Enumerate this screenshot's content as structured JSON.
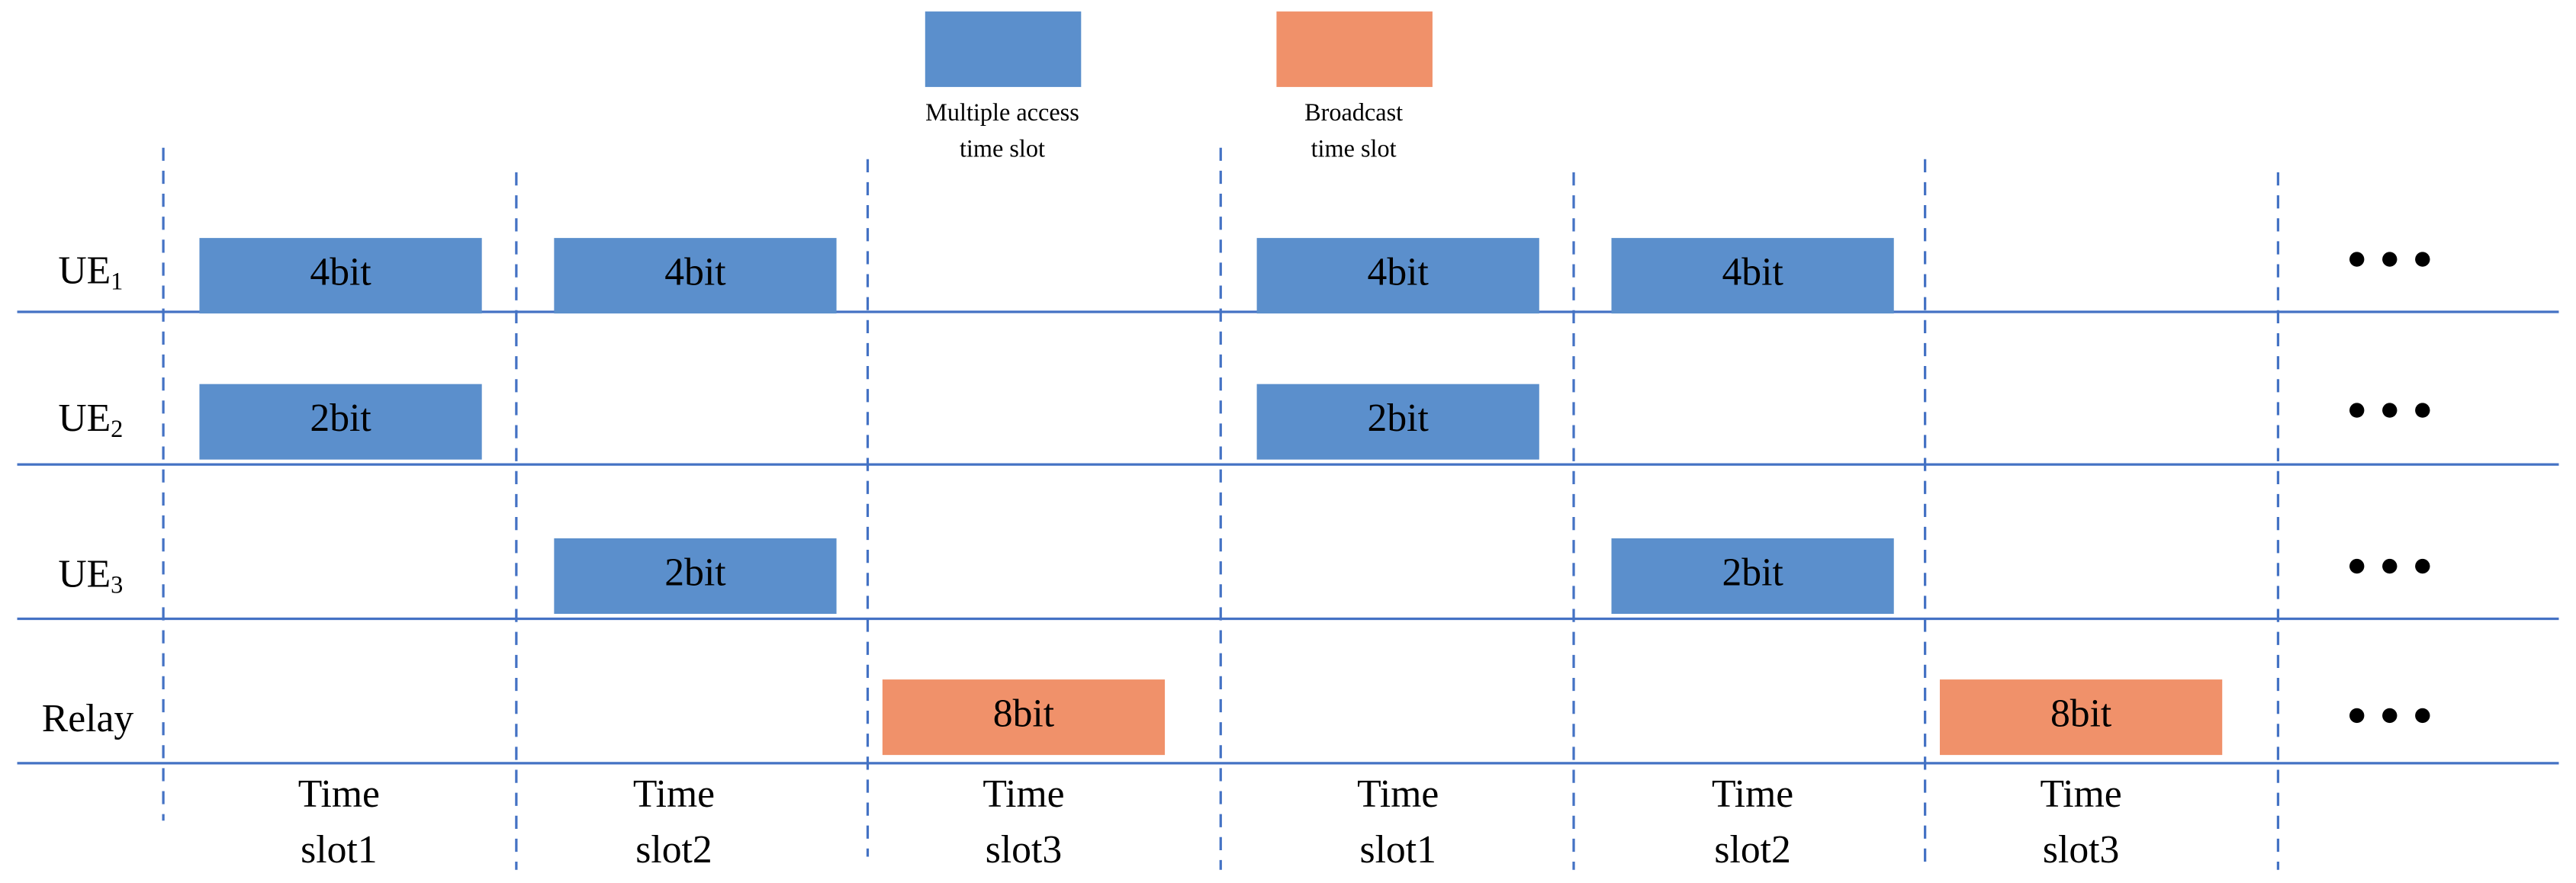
{
  "legend": [
    {
      "lines": [
        "Multiple access",
        "time slot"
      ],
      "color": "#5b8fcc"
    },
    {
      "lines": [
        "Broadcast",
        "time slot"
      ],
      "color": "#f0916a"
    }
  ],
  "rows": [
    {
      "label": "UE",
      "sub": "1",
      "color": "#5b8fcc",
      "cells": [
        "4bit",
        "4bit",
        null,
        "4bit",
        "4bit",
        null
      ]
    },
    {
      "label": "UE",
      "sub": "2",
      "color": "#5b8fcc",
      "cells": [
        "2bit",
        null,
        null,
        "2bit",
        null,
        null
      ]
    },
    {
      "label": "UE",
      "sub": "3",
      "color": "#5b8fcc",
      "cells": [
        null,
        "2bit",
        null,
        null,
        "2bit",
        null
      ]
    },
    {
      "label": "Relay",
      "color": "#f0916a",
      "cells": [
        null,
        null,
        "8bit",
        null,
        null,
        "8bit"
      ]
    }
  ],
  "columns": [
    [
      "Time",
      "slot1"
    ],
    [
      "Time",
      "slot2"
    ],
    [
      "Time",
      "slot3"
    ],
    [
      "Time",
      "slot1"
    ],
    [
      "Time",
      "slot2"
    ],
    [
      "Time",
      "slot3"
    ]
  ]
}
